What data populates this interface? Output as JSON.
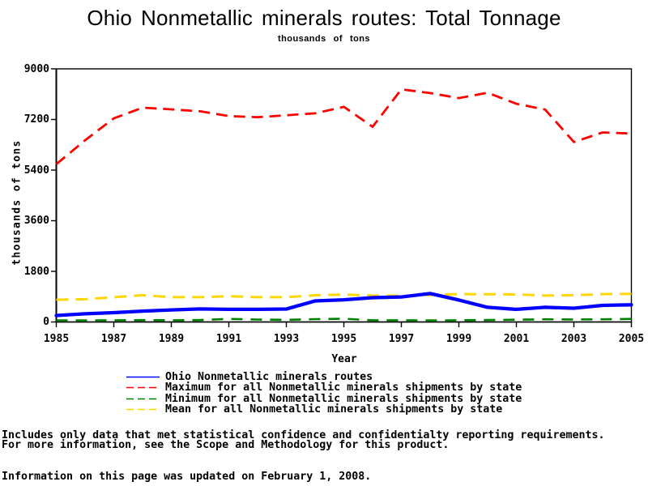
{
  "title": "Ohio Nonmetallic minerals routes: Total Tonnage",
  "subtitle": "thousands of tons",
  "footnotes": {
    "line1": "Includes only data that met statistical confidence and confidentialty reporting requirements.",
    "line2": "For more information, see the Scope and Methodology for this product.",
    "updated": "Information on this page was updated on February 1, 2008."
  },
  "legend": {
    "items": [
      {
        "label": "Ohio Nonmetallic minerals routes",
        "color": "#0000ff",
        "dash": ""
      },
      {
        "label": "Maximum for all Nonmetallic minerals shipments by state",
        "color": "#ff0000",
        "dash": "9 5"
      },
      {
        "label": "Minimum for all Nonmetallic minerals shipments by state",
        "color": "#008000",
        "dash": "9 5"
      },
      {
        "label": "Mean for all Nonmetallic minerals shipments by state",
        "color": "#ffd700",
        "dash": "9 5"
      }
    ]
  },
  "chart_data": {
    "type": "line",
    "title": "Ohio Nonmetallic minerals routes: Total Tonnage",
    "subtitle": "thousands of tons",
    "xlabel": "Year",
    "ylabel": "thousands of tons",
    "xlim": [
      1985,
      2005
    ],
    "ylim": [
      0,
      9000
    ],
    "x_ticks": [
      1985,
      1987,
      1989,
      1991,
      1993,
      1995,
      1997,
      1999,
      2001,
      2003,
      2005
    ],
    "y_ticks": [
      0,
      1800,
      3600,
      5400,
      7200,
      9000
    ],
    "grid": false,
    "legend_position": "bottom",
    "x": [
      1985,
      1986,
      1987,
      1988,
      1989,
      1990,
      1991,
      1992,
      1993,
      1994,
      1995,
      1996,
      1997,
      1998,
      1999,
      2000,
      2001,
      2002,
      2003,
      2004,
      2005
    ],
    "series": [
      {
        "name": "Ohio Nonmetallic minerals routes",
        "color": "#0000ff",
        "style": "solid",
        "width": 4.3,
        "values": [
          230,
          290,
          330,
          385,
          430,
          465,
          450,
          450,
          460,
          750,
          790,
          865,
          890,
          1010,
          780,
          520,
          450,
          520,
          490,
          590,
          610
        ]
      },
      {
        "name": "Maximum for all Nonmetallic minerals shipments by state",
        "color": "#ff0000",
        "style": "dashed",
        "width": 2.8,
        "values": [
          5610,
          6460,
          7240,
          7620,
          7560,
          7490,
          7320,
          7280,
          7350,
          7420,
          7650,
          6940,
          8270,
          8140,
          7960,
          8150,
          7760,
          7550,
          6400,
          6740,
          6700
        ]
      },
      {
        "name": "Minimum for all Nonmetallic minerals shipments by state",
        "color": "#008000",
        "style": "dashed",
        "width": 2.6,
        "values": [
          55,
          55,
          60,
          65,
          60,
          70,
          110,
          85,
          75,
          100,
          115,
          60,
          60,
          55,
          60,
          70,
          80,
          95,
          90,
          95,
          110
        ]
      },
      {
        "name": "Mean for all Nonmetallic minerals shipments by state",
        "color": "#ffd700",
        "style": "dashed",
        "width": 3,
        "values": [
          790,
          810,
          880,
          950,
          880,
          880,
          920,
          880,
          880,
          950,
          975,
          940,
          930,
          960,
          990,
          985,
          980,
          940,
          950,
          990,
          1000
        ]
      }
    ]
  }
}
